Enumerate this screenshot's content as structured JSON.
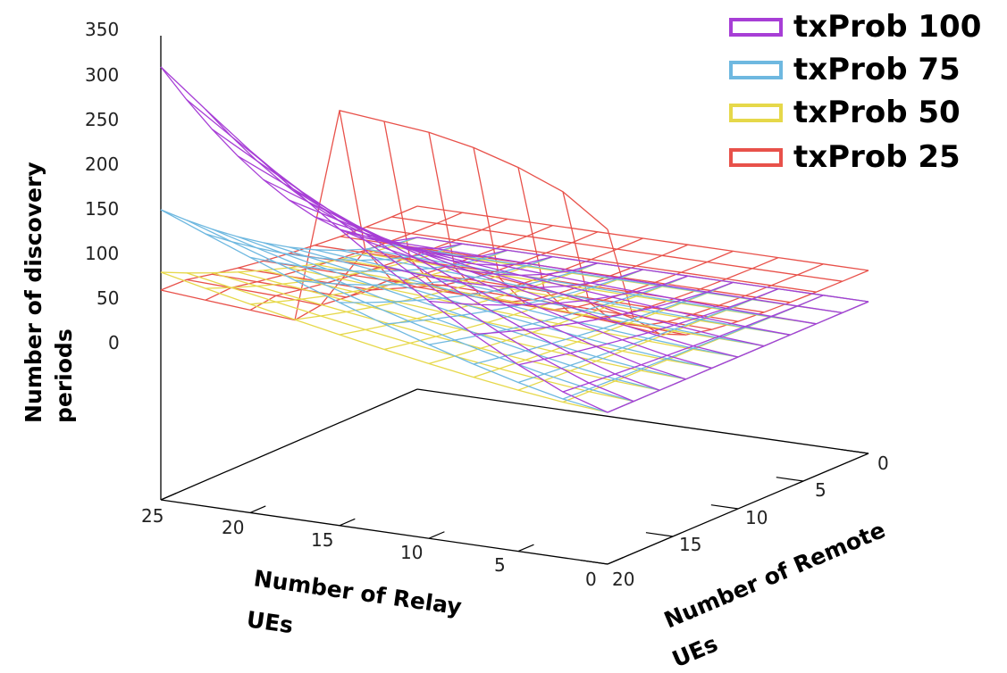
{
  "chart_data": {
    "type": "surface",
    "title": "",
    "z_axis": {
      "label_line1": "Number of discovery",
      "label_line2": "periods",
      "ticks": [
        "350",
        "300",
        "250",
        "200",
        "150",
        "100",
        "50",
        "0"
      ],
      "tick_values": [
        350,
        300,
        250,
        200,
        150,
        100,
        50,
        0
      ],
      "range": [
        0,
        350
      ]
    },
    "relay_axis": {
      "label_line1": "Number of Relay",
      "label_line2": "UEs",
      "ticks": [
        "25",
        "20",
        "15",
        "10",
        "5",
        "0"
      ],
      "tick_values": [
        25,
        20,
        15,
        10,
        5,
        0
      ],
      "range": [
        0,
        25
      ]
    },
    "remote_axis": {
      "label_line1": "Number of Remote",
      "label_line2": "UEs",
      "ticks": [
        "0",
        "5",
        "10",
        "15",
        "20"
      ],
      "tick_values": [
        0,
        5,
        10,
        15,
        20
      ],
      "range": [
        0,
        20
      ]
    },
    "grid": "mesh",
    "legend_position": "top-right",
    "relay_values": [
      25,
      22.5,
      20,
      17.5,
      15,
      12.5,
      10,
      7.5,
      5,
      2.5,
      0
    ],
    "remote_values": [
      0,
      2,
      4,
      6,
      8,
      10,
      12,
      14,
      16,
      18,
      20
    ],
    "series": [
      {
        "name": "txProb 25",
        "color": "#e8514a",
        "model": {
          "peak": 300,
          "relay_cutoff": 17.5,
          "near_axis_level": 100,
          "floor": 40
        },
        "edge_remote_0": [
          70,
          66,
          62,
          58,
          300,
          295,
          290,
          280,
          265,
          245,
          210
        ],
        "edge_relay_25": [
          70,
          60,
          52,
          45,
          40,
          36,
          33,
          30,
          28,
          26,
          25
        ]
      },
      {
        "name": "txProb 50",
        "color": "#e6d84a",
        "model": {
          "peak": 90,
          "floor": 5
        },
        "edge_relay_25": [
          90,
          78,
          66,
          55,
          45,
          37,
          30,
          24,
          18,
          13,
          8
        ]
      },
      {
        "name": "txProb 75",
        "color": "#6eb8e0",
        "model": {
          "peak": 160,
          "floor": 5
        },
        "edge_relay_25": [
          160,
          140,
          120,
          100,
          82,
          66,
          52,
          40,
          30,
          22,
          15
        ]
      },
      {
        "name": "txProb 100",
        "color": "#a73ed6",
        "model": {
          "peak": 320,
          "floor": 5
        },
        "edge_remote_0": [
          320,
          275,
          260,
          240,
          222,
          210,
          200,
          190,
          180,
          170,
          160
        ],
        "edge_relay_25": [
          320,
          270,
          225,
          185,
          150,
          120,
          95,
          75,
          58,
          45,
          35
        ]
      }
    ]
  },
  "legend": [
    {
      "label": "txProb 100",
      "color": "#a73ed6"
    },
    {
      "label": "txProb 75",
      "color": "#6eb8e0"
    },
    {
      "label": "txProb 50",
      "color": "#e6d84a"
    },
    {
      "label": "txProb 25",
      "color": "#e8514a"
    }
  ]
}
